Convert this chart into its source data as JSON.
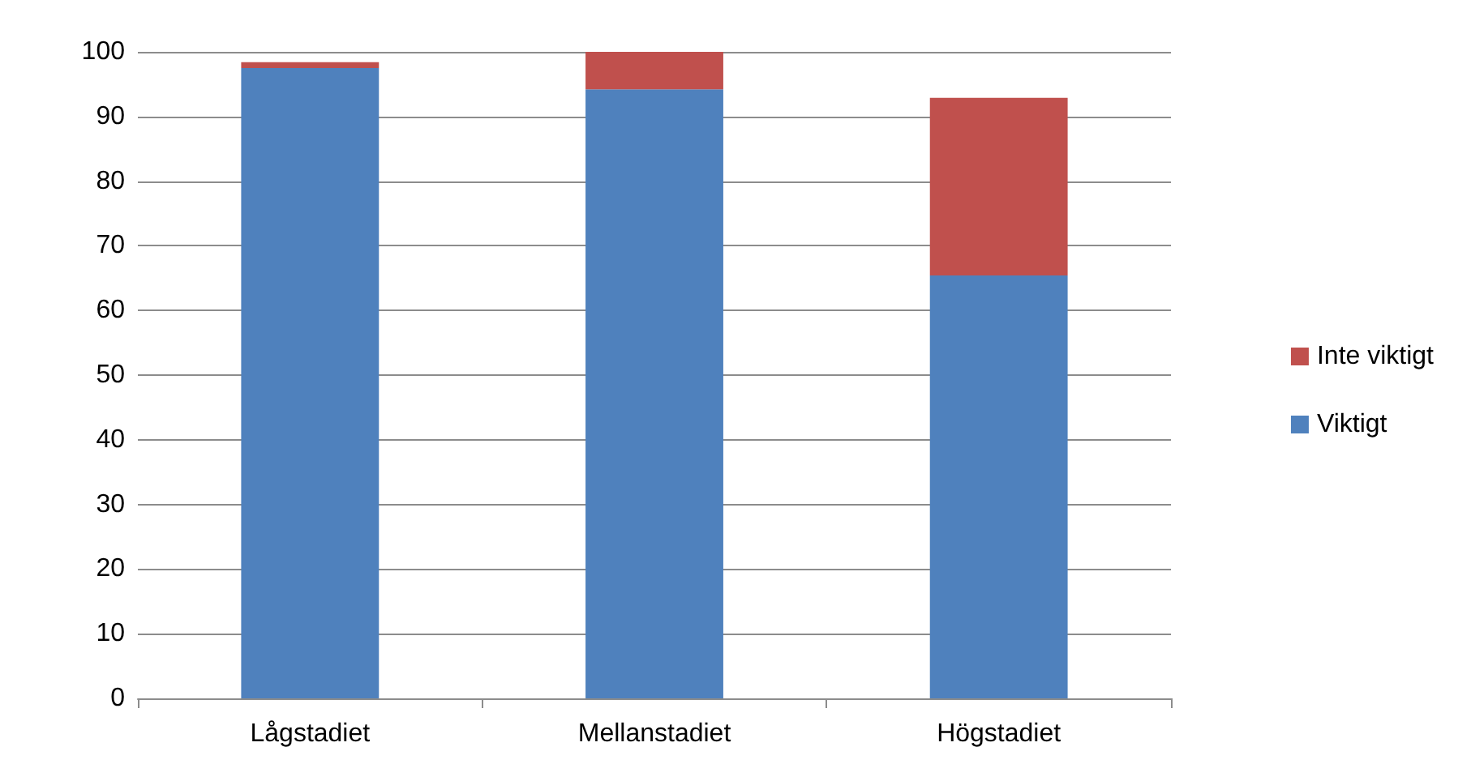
{
  "chart_data": {
    "type": "bar",
    "stacked": true,
    "categories": [
      "Lågstadiet",
      "Mellanstadiet",
      "Högstadiet"
    ],
    "series": [
      {
        "name": "Viktigt",
        "color": "#4f81bd",
        "values": [
          97.5,
          94.2,
          65.4
        ]
      },
      {
        "name": "Inte viktigt",
        "color": "#c0504d",
        "values": [
          0.9,
          5.8,
          27.5
        ]
      }
    ],
    "ylim": [
      0,
      100
    ],
    "yticks": [
      0,
      10,
      20,
      30,
      40,
      50,
      60,
      70,
      80,
      90,
      100
    ],
    "grid": "y",
    "legend": "right"
  }
}
